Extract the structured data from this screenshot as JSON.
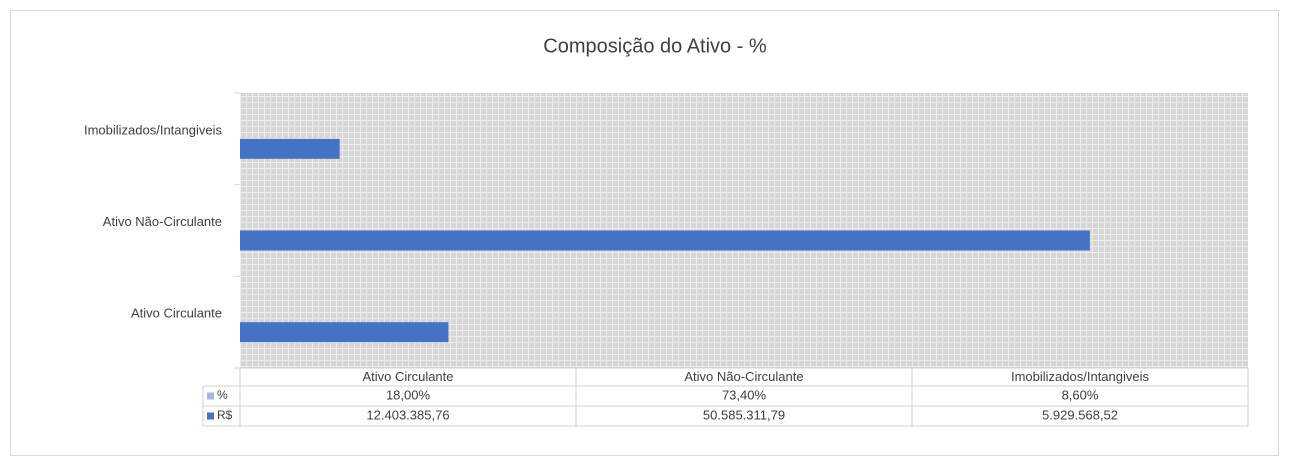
{
  "chart_data": {
    "type": "hbar",
    "title": "Composição do Ativo -  %",
    "categories": [
      "Ativo Circulante",
      "Ativo Não-Circulante",
      "Imobilizados/Intangiveis"
    ],
    "series": [
      {
        "name": "%",
        "color": "#a5b9e0",
        "values": [
          18,
          73.4,
          8.6
        ],
        "value_labels": [
          "18,00%",
          "73,40%",
          "8,60%"
        ]
      },
      {
        "name": "R$",
        "color": "#4472c4",
        "values": [
          12403385.76,
          50585311.79,
          5929568.52
        ],
        "value_labels": [
          "12.403.385,76",
          "50.585.311,79",
          "5.929.568,52"
        ]
      }
    ],
    "xlim": [
      0,
      60000000
    ],
    "data_table": true
  }
}
